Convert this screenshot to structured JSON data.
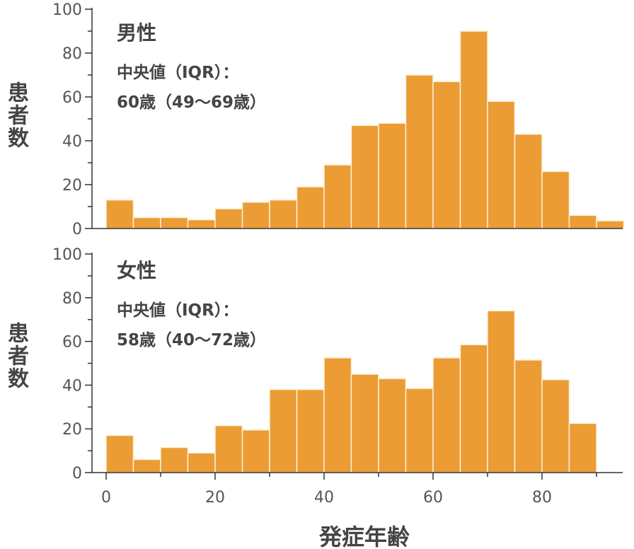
{
  "chart_data": [
    {
      "type": "bar",
      "panel": "top",
      "annotation": {
        "title": "男性",
        "line1": "中央値（IQR）：",
        "line2": "60歳（49～69歳）"
      },
      "ylabel": "患者数",
      "xlabel": "",
      "bin_width": 5,
      "bin_starts": [
        0,
        5,
        10,
        15,
        20,
        25,
        30,
        35,
        40,
        45,
        50,
        55,
        60,
        65,
        70,
        75,
        80,
        85,
        90
      ],
      "values": [
        13,
        5,
        5,
        4,
        9,
        12,
        13,
        19,
        29,
        47,
        48,
        70,
        67,
        90,
        58,
        43,
        26,
        6,
        3.5
      ],
      "ylim": [
        0,
        100
      ],
      "yticks": [
        0,
        20,
        40,
        60,
        80,
        100
      ],
      "xlim": [
        -2.5,
        95
      ],
      "color": "#EB9C35",
      "grid": false
    },
    {
      "type": "bar",
      "panel": "bottom",
      "annotation": {
        "title": "女性",
        "line1": "中央値（IQR）：",
        "line2": "58歳（40～72歳）"
      },
      "ylabel": "患者数",
      "xlabel": "発症年齢",
      "bin_width": 5,
      "bin_starts": [
        0,
        5,
        10,
        15,
        20,
        25,
        30,
        35,
        40,
        45,
        50,
        55,
        60,
        65,
        70,
        75,
        80,
        85
      ],
      "values": [
        17,
        6,
        11.5,
        9,
        21.5,
        19.5,
        38,
        38,
        52.5,
        45,
        43,
        38.5,
        52.5,
        58.5,
        74,
        51.5,
        42.5,
        22.5
      ],
      "ylim": [
        0,
        100
      ],
      "yticks": [
        0,
        20,
        40,
        60,
        80,
        100
      ],
      "xticks": [
        0,
        20,
        40,
        60,
        80
      ],
      "xlim": [
        -2.5,
        95
      ],
      "color": "#EB9C35",
      "grid": false
    }
  ]
}
